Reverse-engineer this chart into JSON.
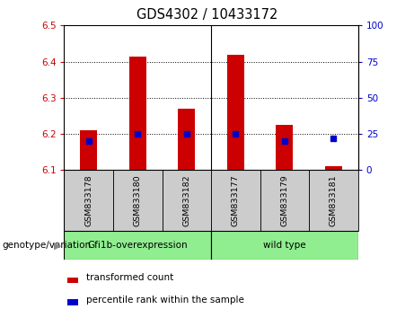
{
  "title": "GDS4302 / 10433172",
  "samples": [
    "GSM833178",
    "GSM833180",
    "GSM833182",
    "GSM833177",
    "GSM833179",
    "GSM833181"
  ],
  "red_values": [
    6.21,
    6.415,
    6.27,
    6.42,
    6.225,
    6.11
  ],
  "blue_values": [
    20,
    25,
    25,
    25,
    20,
    22
  ],
  "bar_bottom": 6.1,
  "ylim_left": [
    6.1,
    6.5
  ],
  "ylim_right": [
    0,
    100
  ],
  "yticks_left": [
    6.1,
    6.2,
    6.3,
    6.4,
    6.5
  ],
  "yticks_right": [
    0,
    25,
    50,
    75,
    100
  ],
  "red_color": "#cc0000",
  "blue_color": "#0000cc",
  "bar_width": 0.35,
  "legend_red": "transformed count",
  "legend_blue": "percentile rank within the sample",
  "left_tick_color": "#cc0000",
  "right_tick_color": "#0000cc",
  "plot_bg": "#ffffff",
  "label_cell_bg": "#cccccc",
  "group_area_bg": "#90ee90",
  "group_border_color": "black",
  "group1_label": "Gfi1b-overexpression",
  "group2_label": "wild type",
  "genotype_label": "genotype/variation"
}
